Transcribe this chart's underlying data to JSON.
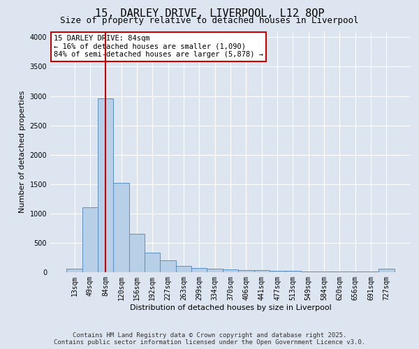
{
  "title1": "15, DARLEY DRIVE, LIVERPOOL, L12 8QP",
  "title2": "Size of property relative to detached houses in Liverpool",
  "xlabel": "Distribution of detached houses by size in Liverpool",
  "ylabel": "Number of detached properties",
  "categories": [
    "13sqm",
    "49sqm",
    "84sqm",
    "120sqm",
    "156sqm",
    "192sqm",
    "227sqm",
    "263sqm",
    "299sqm",
    "334sqm",
    "370sqm",
    "406sqm",
    "441sqm",
    "477sqm",
    "513sqm",
    "549sqm",
    "584sqm",
    "620sqm",
    "656sqm",
    "691sqm",
    "727sqm"
  ],
  "values": [
    55,
    1100,
    2960,
    1520,
    650,
    330,
    200,
    110,
    75,
    60,
    45,
    35,
    30,
    25,
    20,
    15,
    12,
    10,
    8,
    6,
    65
  ],
  "bar_color": "#b8cfe8",
  "bar_edge_color": "#5a8fc0",
  "red_line_index": 2,
  "annotation_title": "15 DARLEY DRIVE: 84sqm",
  "annotation_line1": "← 16% of detached houses are smaller (1,090)",
  "annotation_line2": "84% of semi-detached houses are larger (5,878) →",
  "annotation_box_facecolor": "#ffffff",
  "annotation_box_edgecolor": "#cc0000",
  "red_line_color": "#cc0000",
  "ylim": [
    0,
    4100
  ],
  "yticks": [
    0,
    500,
    1000,
    1500,
    2000,
    2500,
    3000,
    3500,
    4000
  ],
  "bg_color": "#dde6f0",
  "plot_bg_color": "#dde6f0",
  "grid_color": "#ffffff",
  "footer1": "Contains HM Land Registry data © Crown copyright and database right 2025.",
  "footer2": "Contains public sector information licensed under the Open Government Licence v3.0.",
  "title1_fontsize": 11,
  "title2_fontsize": 9,
  "annotation_fontsize": 7.5,
  "axis_label_fontsize": 8,
  "tick_fontsize": 7,
  "footer_fontsize": 6.5
}
